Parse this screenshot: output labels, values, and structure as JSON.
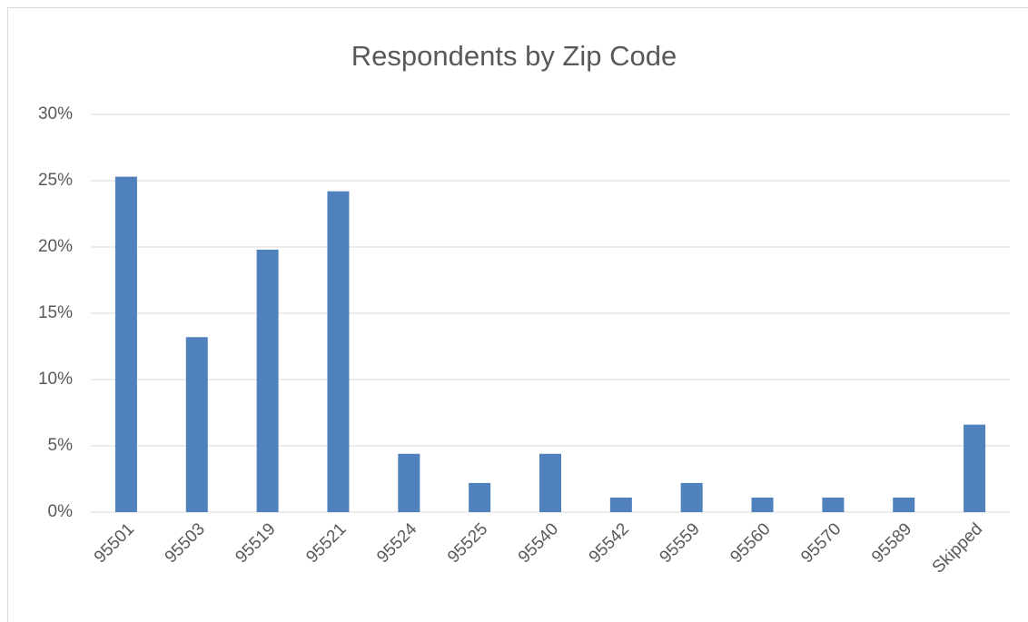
{
  "chart_data": {
    "type": "bar",
    "title": "Respondents  by Zip Code",
    "categories": [
      "95501",
      "95503",
      "95519",
      "95521",
      "95524",
      "95525",
      "95540",
      "95542",
      "95559",
      "95560",
      "95570",
      "95589",
      "Skipped"
    ],
    "values": [
      25.3,
      13.2,
      19.8,
      24.2,
      4.4,
      2.2,
      4.4,
      1.1,
      2.2,
      1.1,
      1.1,
      1.1,
      6.6
    ],
    "color": "#4f81bd",
    "ylim": [
      0,
      30
    ],
    "yticks": [
      {
        "value": 0,
        "label": "0%"
      },
      {
        "value": 5,
        "label": "5%"
      },
      {
        "value": 10,
        "label": "10%"
      },
      {
        "value": 15,
        "label": "15%"
      },
      {
        "value": 20,
        "label": "20%"
      },
      {
        "value": 25,
        "label": "25%"
      },
      {
        "value": 30,
        "label": "30%"
      }
    ],
    "grid": true
  }
}
